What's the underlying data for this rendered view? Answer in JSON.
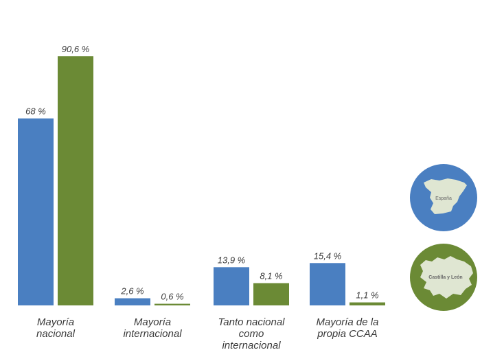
{
  "chart_data": {
    "type": "bar",
    "categories": [
      [
        "Mayoría",
        "nacional"
      ],
      [
        "Mayoría",
        "internacional"
      ],
      [
        "Tanto nacional",
        "como",
        "internacional"
      ],
      [
        "Mayoría de la",
        "propia CCAA"
      ]
    ],
    "series": [
      {
        "name": "España",
        "color": "#4a7fc1",
        "values": [
          68,
          2.6,
          13.9,
          15.4
        ],
        "labels": [
          "68 %",
          "2,6 %",
          "13,9 %",
          "15,4 %"
        ]
      },
      {
        "name": "Castilla y León",
        "color": "#6b8a35",
        "values": [
          90.6,
          0.6,
          8.1,
          1.1
        ],
        "labels": [
          "90,6 %",
          "0,6 %",
          "8,1 %",
          "1,1 %"
        ]
      }
    ],
    "ylim": [
      0,
      100
    ],
    "grid": false,
    "legend_placement": "right",
    "legend_icons": [
      "spain-map-icon",
      "castilla-y-leon-map-icon"
    ]
  }
}
